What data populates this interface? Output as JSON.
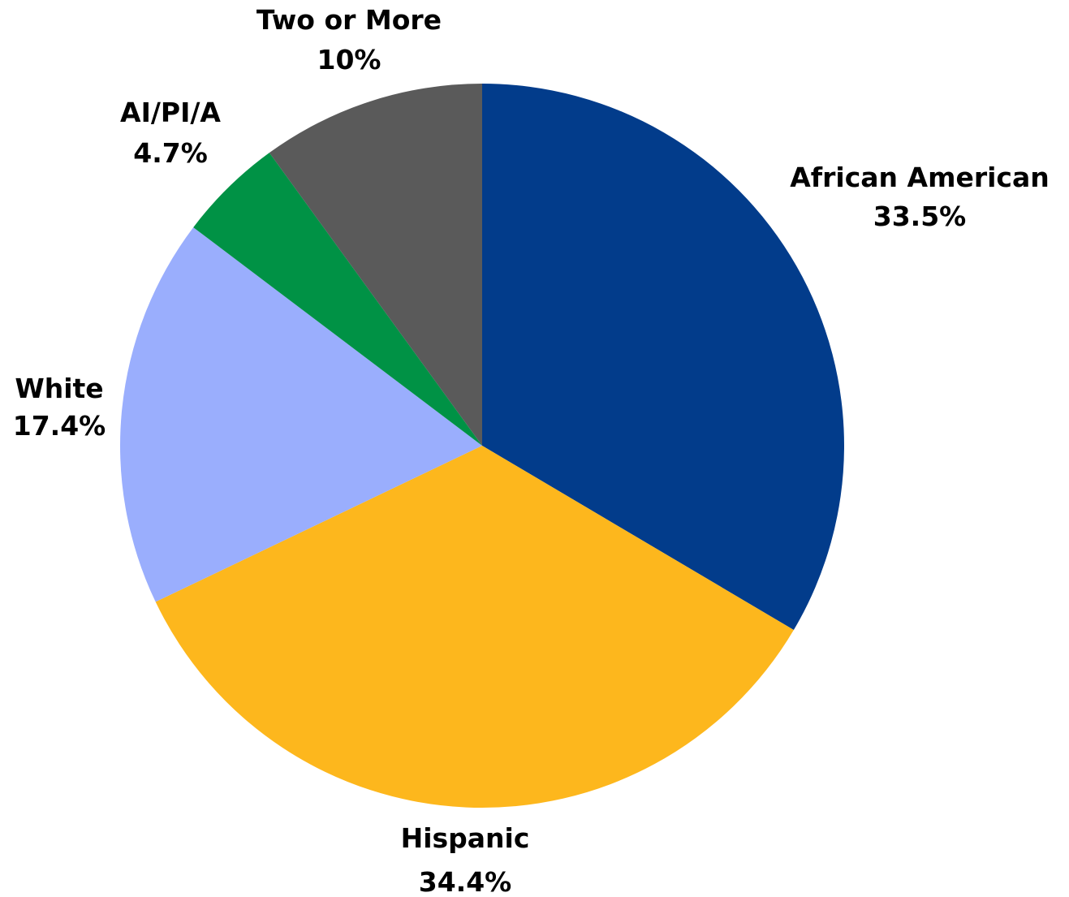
{
  "chart_data": {
    "type": "pie",
    "title": "",
    "slices": [
      {
        "name": "African American",
        "value": 33.5,
        "value_label": "33.5%",
        "color": "#023C8B"
      },
      {
        "name": "Hispanic",
        "value": 34.4,
        "value_label": "34.4%",
        "color": "#FDB71D"
      },
      {
        "name": "White",
        "value": 17.4,
        "value_label": "17.4%",
        "color": "#9AAEFD"
      },
      {
        "name": "AI/PI/A",
        "value": 4.7,
        "value_label": "4.7%",
        "color": "#009245"
      },
      {
        "name": "Two or More",
        "value": 10,
        "value_label": "10%",
        "color": "#5A5A5A"
      }
    ],
    "start": "12 o'clock",
    "direction": "clockwise",
    "legend": "none",
    "labels": "outside"
  }
}
